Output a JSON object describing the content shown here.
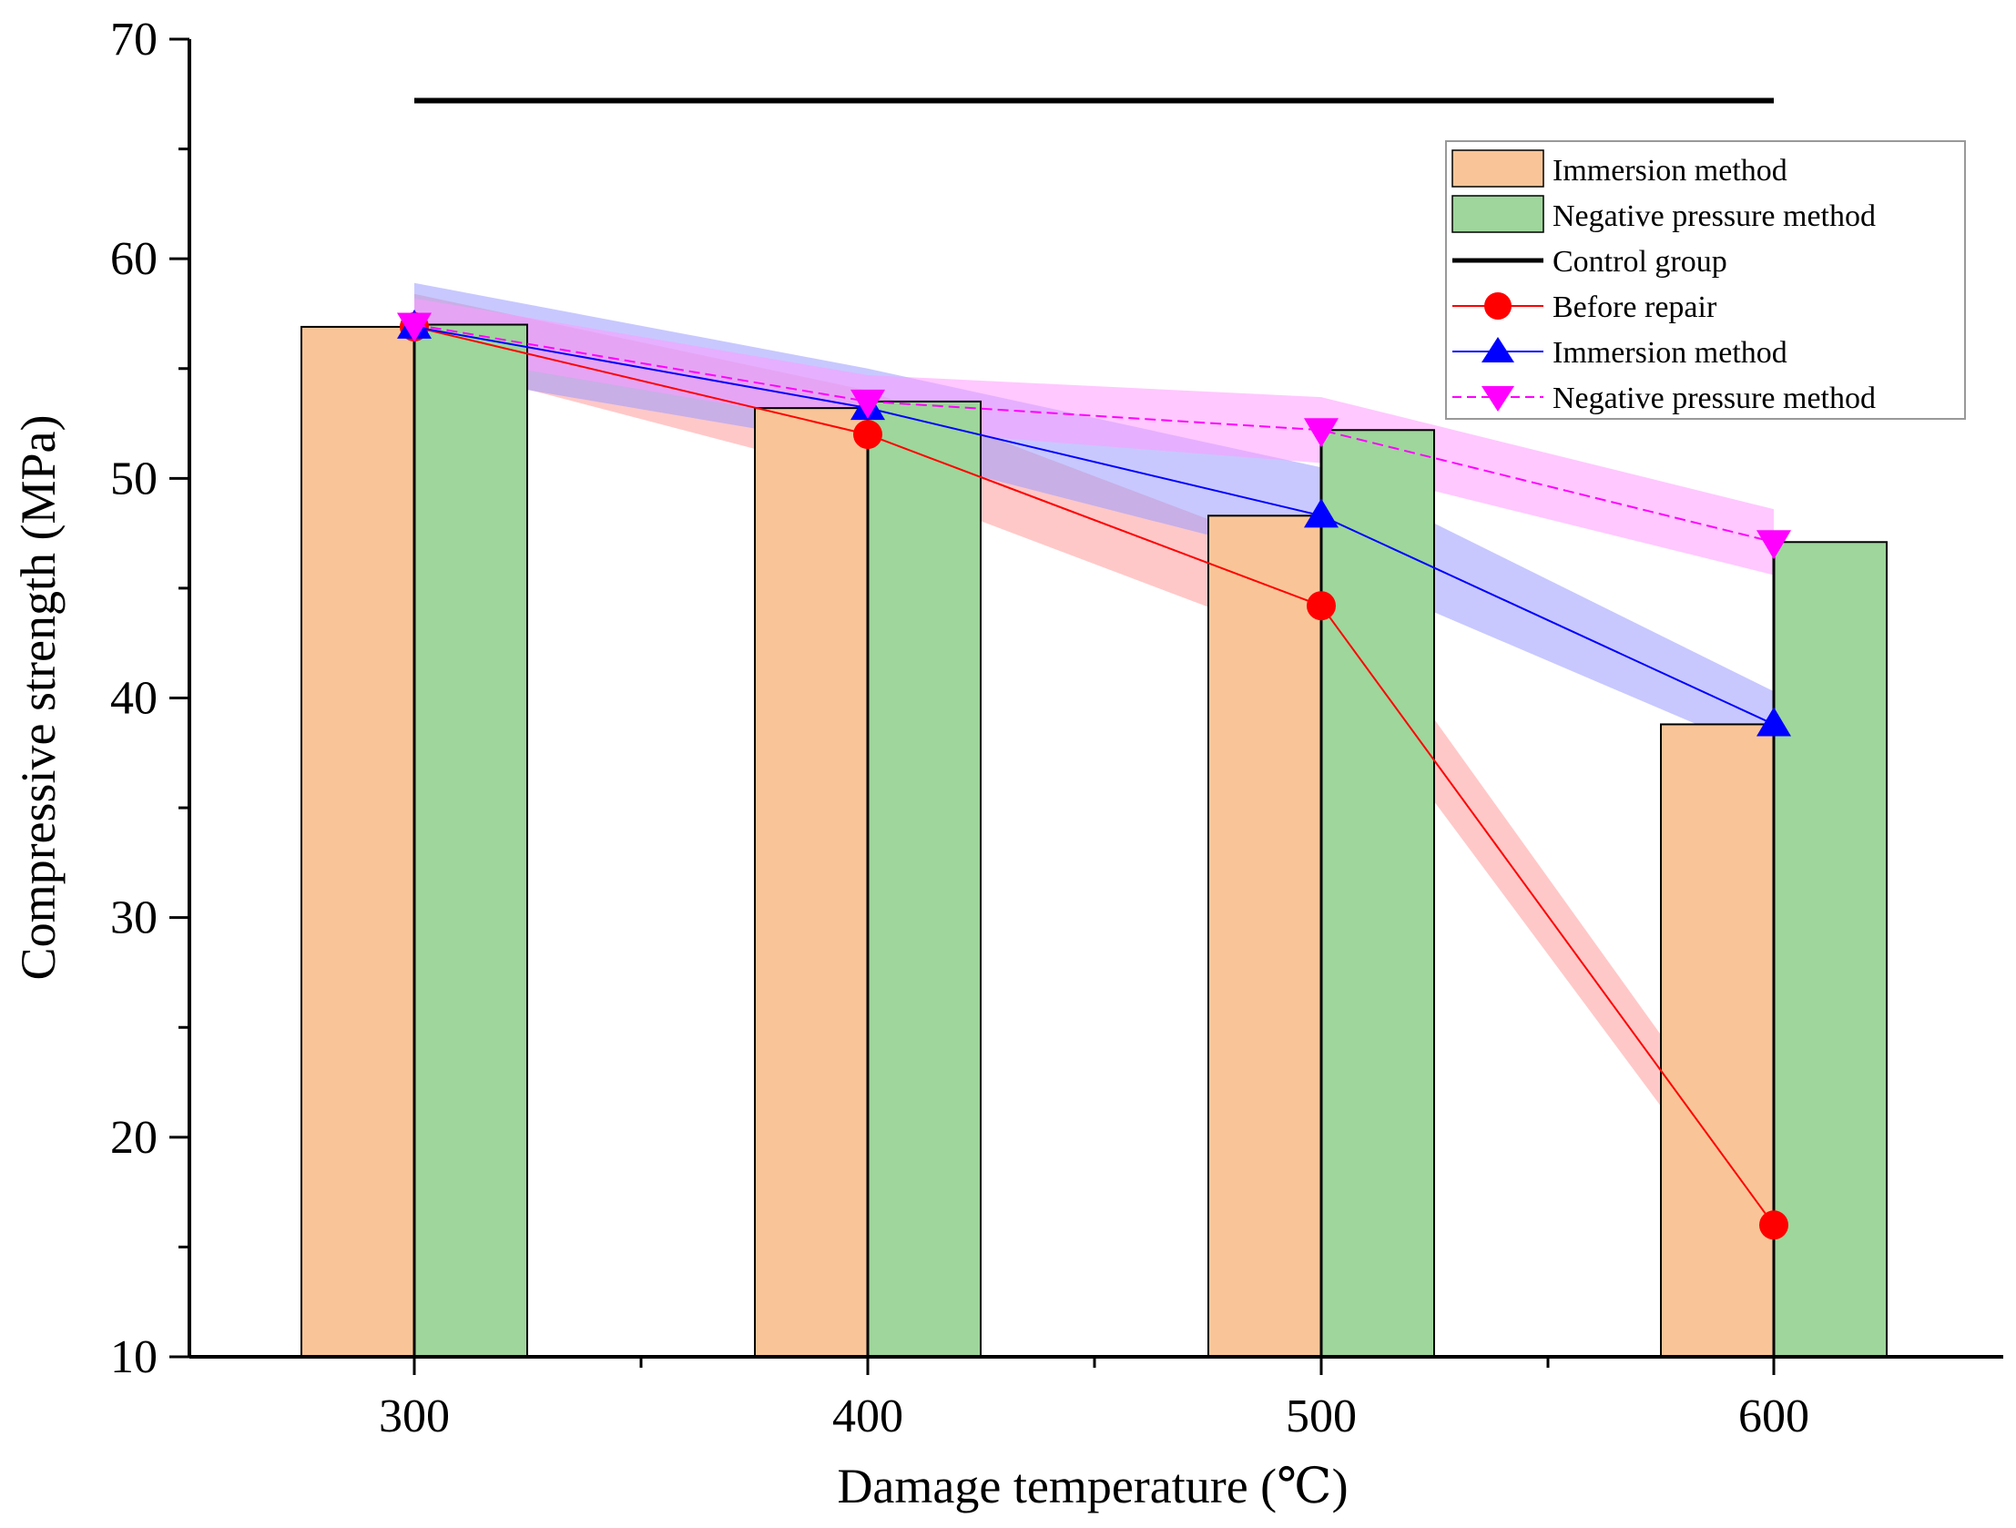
{
  "chart_data": {
    "type": "bar",
    "title": "",
    "xlabel": "Damage temperature (℃)",
    "ylabel": "Compressive strength (MPa)",
    "categories": [
      "300",
      "400",
      "500",
      "600"
    ],
    "ylim": [
      10,
      70
    ],
    "yticks": [
      10,
      20,
      30,
      40,
      50,
      60,
      70
    ],
    "bar_series": [
      {
        "name": "Immersion method",
        "color": "#f9c598",
        "values": [
          56.9,
          53.2,
          48.3,
          38.8
        ]
      },
      {
        "name": "Negative pressure method",
        "color": "#9ed69b",
        "values": [
          57.0,
          53.5,
          52.2,
          47.1
        ]
      }
    ],
    "control_group": {
      "name": "Control group",
      "value": 67.2,
      "color": "#000000"
    },
    "line_series": [
      {
        "name": "Before repair",
        "color": "#ff0000",
        "band_color": "#ff9a9a",
        "marker": "circle",
        "values": [
          56.9,
          52.0,
          44.2,
          16.0
        ],
        "band": [
          1.5,
          2.0,
          2.0,
          1.5
        ]
      },
      {
        "name": "Immersion method",
        "color": "#0000ff",
        "band_color": "#9a9aff",
        "marker": "triangle-up",
        "values": [
          56.9,
          53.2,
          48.3,
          38.8
        ],
        "band": [
          2.0,
          1.8,
          2.2,
          1.5
        ]
      },
      {
        "name": "Negative pressure method",
        "color": "#ff00ff",
        "band_color": "#ff9aff",
        "marker": "triangle-down",
        "values": [
          57.0,
          53.5,
          52.2,
          47.1
        ],
        "band": [
          1.2,
          1.2,
          1.5,
          1.5
        ]
      }
    ],
    "legend": [
      "Immersion method",
      "Negative pressure method",
      "Control group",
      "Before repair",
      "Immersion method",
      "Negative pressure method"
    ],
    "legend_position": "top-right"
  }
}
